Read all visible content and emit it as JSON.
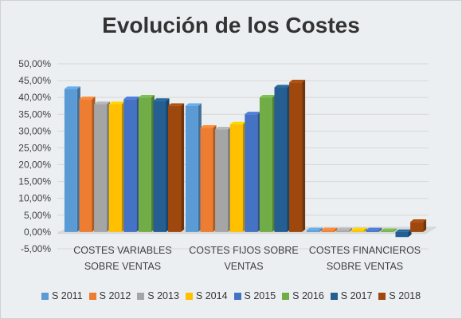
{
  "chart_data": {
    "type": "bar",
    "title": "Evolución de los Costes",
    "categories": [
      [
        "COSTES VARIABLES",
        "SOBRE VENTAS"
      ],
      [
        "COSTES FIJOS SOBRE",
        "VENTAS"
      ],
      [
        "COSTES FINANCIEROS",
        "SOBRE VENTAS"
      ]
    ],
    "ylim": [
      -5,
      50
    ],
    "yticks": [
      "-5,00%",
      "0,00%",
      "5,00%",
      "10,00%",
      "15,00%",
      "20,00%",
      "25,00%",
      "30,00%",
      "35,00%",
      "40,00%",
      "45,00%",
      "50,00%"
    ],
    "ytick_values": [
      -5,
      0,
      5,
      10,
      15,
      20,
      25,
      30,
      35,
      40,
      45,
      50
    ],
    "grid": true,
    "legend_position": "bottom",
    "series": [
      {
        "name": "S 2011",
        "color": "#5b9bd5",
        "values": [
          42.5,
          37.5,
          0.5
        ]
      },
      {
        "name": "S 2012",
        "color": "#ed7d31",
        "values": [
          39.5,
          31.0,
          0.5
        ]
      },
      {
        "name": "S 2013",
        "color": "#a5a5a5",
        "values": [
          38.0,
          30.5,
          0.5
        ]
      },
      {
        "name": "S 2014",
        "color": "#ffc000",
        "values": [
          38.0,
          32.0,
          0.5
        ]
      },
      {
        "name": "S 2015",
        "color": "#4472c4",
        "values": [
          39.5,
          35.0,
          0.5
        ]
      },
      {
        "name": "S 2016",
        "color": "#70ad47",
        "values": [
          40.0,
          40.0,
          0.3
        ]
      },
      {
        "name": "S 2017",
        "color": "#255e91",
        "values": [
          39.0,
          43.0,
          -1.5
        ]
      },
      {
        "name": "S 2018",
        "color": "#9e480e",
        "values": [
          37.5,
          44.5,
          3.0
        ]
      }
    ]
  }
}
